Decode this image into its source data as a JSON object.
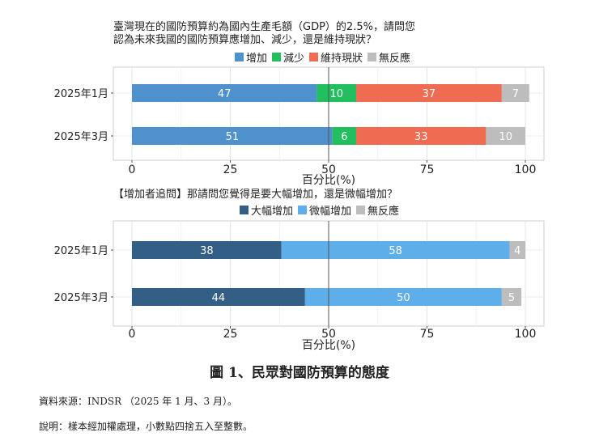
{
  "chart_data": [
    {
      "type": "bar",
      "orientation": "horizontal-stacked",
      "title": "臺灣現在的國防預算約為國內生產毛額（GDP）的2.5%，請問您\n認為未來我國的國防預算應增加、減少，還是維持現狀？",
      "categories": [
        "2025年1月",
        "2025年3月"
      ],
      "series": [
        {
          "name": "增加",
          "color": "#4e91cc",
          "values": [
            47,
            51
          ]
        },
        {
          "name": "減少",
          "color": "#22bf5e",
          "values": [
            10,
            6
          ]
        },
        {
          "name": "維持現狀",
          "color": "#ef6b52",
          "values": [
            37,
            33
          ]
        },
        {
          "name": "無反應",
          "color": "#bdbdbd",
          "values": [
            7,
            10
          ]
        }
      ],
      "xlabel": "百分比(%)",
      "xlim": [
        0,
        100
      ],
      "xticks": [
        "0",
        "25",
        "50",
        "75",
        "100"
      ],
      "reference_line": 50,
      "legend_position": "top"
    },
    {
      "type": "bar",
      "orientation": "horizontal-stacked",
      "title": "【增加者追問】那請問您覺得是要大幅增加，還是微幅增加？",
      "categories": [
        "2025年1月",
        "2025年3月"
      ],
      "series": [
        {
          "name": "大幅增加",
          "color": "#335f87",
          "values": [
            38,
            44
          ]
        },
        {
          "name": "微幅增加",
          "color": "#5eaeea",
          "values": [
            58,
            50
          ]
        },
        {
          "name": "無反應",
          "color": "#bdbdbd",
          "values": [
            4,
            5
          ]
        }
      ],
      "xlabel": "百分比(%)",
      "xlim": [
        0,
        100
      ],
      "xticks": [
        "0",
        "25",
        "50",
        "75",
        "100"
      ],
      "reference_line": 50,
      "legend_position": "top"
    }
  ],
  "figure_caption": "圖 1、民眾對國防預算的態度",
  "source_note": "資料來源：INDSR （2025 年 1 月、3 月）。",
  "method_note": "說明：樣本經加權處理，小數點四捨五入至整數。"
}
